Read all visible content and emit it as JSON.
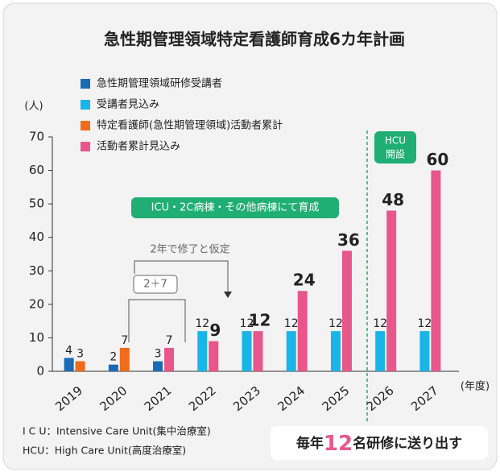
{
  "chart_data": {
    "type": "bar",
    "title": "急性期管理領域特定看護師育成6カ年計画",
    "y_label": "(人)",
    "x_label": "(年度)",
    "categories": [
      "2019",
      "2020",
      "2021",
      "2022",
      "2023",
      "2024",
      "2025",
      "2026",
      "2027"
    ],
    "series": [
      {
        "name": "急性期管理領域研修受講者",
        "color": "#1a6bb3",
        "values": [
          4,
          2,
          3,
          null,
          null,
          null,
          null,
          null,
          null
        ]
      },
      {
        "name": "受講者見込み",
        "color": "#19b4e8",
        "values": [
          null,
          null,
          null,
          12,
          12,
          12,
          12,
          12,
          12
        ]
      },
      {
        "name": "特定看護師(急性期管理領域)活動者累計",
        "color": "#ee6c1c",
        "values": [
          3,
          7,
          null,
          null,
          null,
          null,
          null,
          null,
          null
        ]
      },
      {
        "name": "活動者累計見込み",
        "color": "#e8578a",
        "values": [
          null,
          null,
          7,
          9,
          12,
          24,
          36,
          48,
          60
        ]
      }
    ],
    "ylim": [
      0,
      70
    ],
    "yticks": [
      0,
      10,
      20,
      30,
      40,
      50,
      60,
      70
    ],
    "grid": false,
    "legend": "top-left",
    "annotations": {
      "training": "ICU・2C病棟・その他病棟にて育成",
      "assumption": "2年で修了と仮定",
      "sum": "2＋7",
      "hcu": [
        "HCU",
        "開設"
      ],
      "footnotes": [
        "I C U：Intensive Care Unit(集中治療室)",
        "HCU：High Care Unit(高度治療室)"
      ],
      "slogan": [
        "毎年",
        "12",
        "名研修に送り出す"
      ]
    }
  }
}
